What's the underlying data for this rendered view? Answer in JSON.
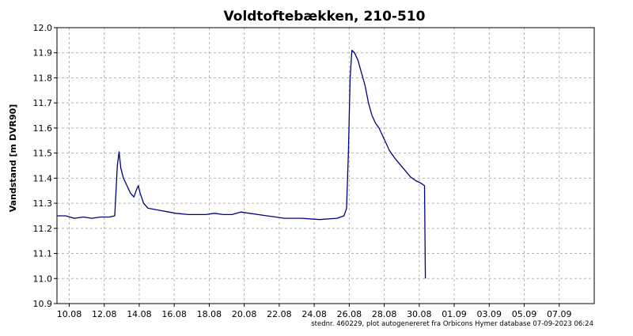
{
  "chart_data": {
    "type": "line",
    "title": "Voldtoftebækken, 210-510",
    "ylabel": "Vandstand [m DVR90]",
    "xlabel": "",
    "footnote": "stednr. 460229, plot autogenereret fra Orbicons Hymer database 07-09-2023 06:24",
    "ylim": [
      10.9,
      12.0
    ],
    "yticks": [
      "12.0",
      "11.9",
      "11.8",
      "11.7",
      "11.6",
      "11.5",
      "11.4",
      "11.3",
      "11.2",
      "11.1",
      "11.0",
      "10.9"
    ],
    "xlim_days": [
      0,
      30.7
    ],
    "xticks": [
      {
        "label": "10.08",
        "day": 0.7
      },
      {
        "label": "12.08",
        "day": 2.7
      },
      {
        "label": "14.08",
        "day": 4.7
      },
      {
        "label": "16.08",
        "day": 6.7
      },
      {
        "label": "18.08",
        "day": 8.7
      },
      {
        "label": "20.08",
        "day": 10.7
      },
      {
        "label": "22.08",
        "day": 12.7
      },
      {
        "label": "24.08",
        "day": 14.7
      },
      {
        "label": "26.08",
        "day": 16.7
      },
      {
        "label": "28.08",
        "day": 18.7
      },
      {
        "label": "30.08",
        "day": 20.7
      },
      {
        "label": "01.09",
        "day": 22.7
      },
      {
        "label": "03.09",
        "day": 24.7
      },
      {
        "label": "05.09",
        "day": 26.7
      },
      {
        "label": "07.09",
        "day": 28.7
      }
    ],
    "grid": true,
    "series": [
      {
        "color": "#000080",
        "points": [
          [
            0.0,
            11.25
          ],
          [
            0.5,
            11.25
          ],
          [
            1.0,
            11.24
          ],
          [
            1.5,
            11.245
          ],
          [
            2.0,
            11.24
          ],
          [
            2.5,
            11.245
          ],
          [
            3.0,
            11.245
          ],
          [
            3.3,
            11.25
          ],
          [
            3.45,
            11.45
          ],
          [
            3.55,
            11.505
          ],
          [
            3.65,
            11.44
          ],
          [
            3.8,
            11.4
          ],
          [
            4.0,
            11.37
          ],
          [
            4.2,
            11.34
          ],
          [
            4.4,
            11.325
          ],
          [
            4.55,
            11.355
          ],
          [
            4.65,
            11.37
          ],
          [
            4.75,
            11.34
          ],
          [
            4.95,
            11.3
          ],
          [
            5.2,
            11.28
          ],
          [
            5.6,
            11.275
          ],
          [
            6.0,
            11.27
          ],
          [
            6.4,
            11.265
          ],
          [
            6.8,
            11.26
          ],
          [
            7.5,
            11.255
          ],
          [
            8.5,
            11.255
          ],
          [
            9.0,
            11.26
          ],
          [
            9.5,
            11.255
          ],
          [
            10.0,
            11.255
          ],
          [
            10.5,
            11.265
          ],
          [
            11.0,
            11.26
          ],
          [
            11.5,
            11.255
          ],
          [
            12.0,
            11.25
          ],
          [
            12.5,
            11.245
          ],
          [
            13.0,
            11.24
          ],
          [
            14.0,
            11.24
          ],
          [
            15.0,
            11.235
          ],
          [
            16.0,
            11.24
          ],
          [
            16.4,
            11.25
          ],
          [
            16.55,
            11.28
          ],
          [
            16.65,
            11.5
          ],
          [
            16.75,
            11.8
          ],
          [
            16.85,
            11.91
          ],
          [
            17.0,
            11.9
          ],
          [
            17.2,
            11.87
          ],
          [
            17.4,
            11.82
          ],
          [
            17.6,
            11.77
          ],
          [
            17.8,
            11.7
          ],
          [
            18.0,
            11.65
          ],
          [
            18.2,
            11.62
          ],
          [
            18.4,
            11.6
          ],
          [
            18.6,
            11.57
          ],
          [
            18.8,
            11.54
          ],
          [
            19.0,
            11.51
          ],
          [
            19.3,
            11.48
          ],
          [
            19.6,
            11.455
          ],
          [
            19.9,
            11.43
          ],
          [
            20.2,
            11.405
          ],
          [
            20.5,
            11.39
          ],
          [
            20.8,
            11.38
          ],
          [
            21.0,
            11.37
          ],
          [
            21.05,
            11.0
          ]
        ]
      }
    ]
  }
}
